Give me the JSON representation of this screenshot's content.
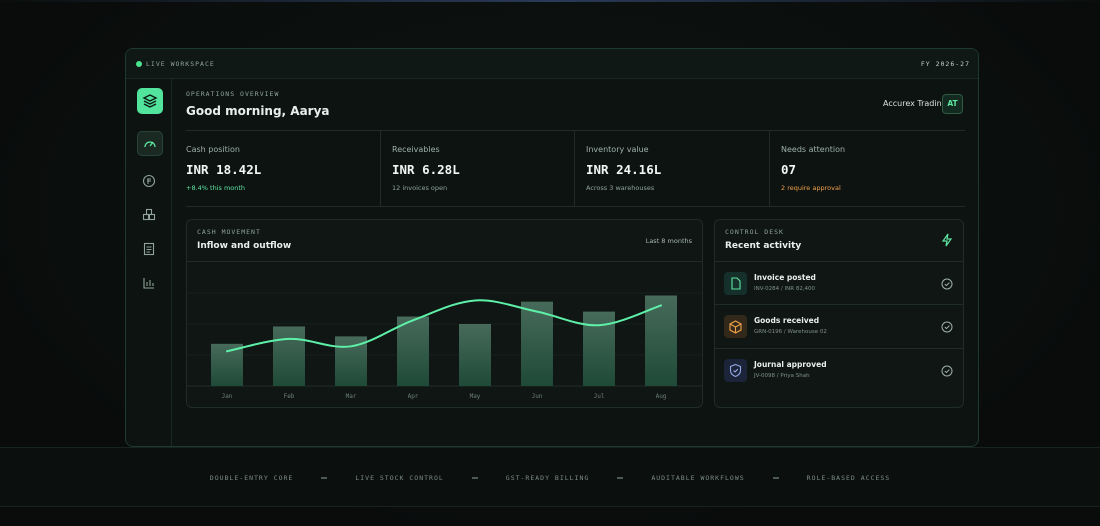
{
  "workspace": {
    "status": "LIVE WORKSPACE",
    "fiscal_year": "FY 2026-27"
  },
  "header": {
    "eyebrow": "OPERATIONS OVERVIEW",
    "greeting": "Good morning, Aarya",
    "company": "Accurex Trading",
    "avatar": "AT"
  },
  "kpis": [
    {
      "label": "Cash position",
      "value": "INR 18.42L",
      "note": "+8.4% this month"
    },
    {
      "label": "Receivables",
      "value": "INR 6.28L",
      "note": "12 invoices open"
    },
    {
      "label": "Inventory value",
      "value": "INR 24.16L",
      "note": "Across 3 warehouses"
    },
    {
      "label": "Needs attention",
      "value": "07",
      "note": "2 require approval"
    }
  ],
  "chart_data": {
    "type": "bar",
    "eyebrow": "CASH MOVEMENT",
    "title": "Inflow and outflow",
    "period": "Last 8 months",
    "categories": [
      "Jan",
      "Feb",
      "Mar",
      "Apr",
      "May",
      "Jun",
      "Jul",
      "Aug"
    ],
    "ylim": [
      0,
      100
    ],
    "series": [
      {
        "type": "bar",
        "color": "#1f4a37",
        "values": [
          34,
          48,
          40,
          56,
          50,
          68,
          60,
          73
        ]
      },
      {
        "type": "line",
        "color": "#5ef0a8",
        "values": [
          28,
          38,
          32,
          53,
          69,
          60,
          49,
          65
        ]
      }
    ]
  },
  "activity": {
    "eyebrow": "CONTROL DESK",
    "title": "Recent activity",
    "items": [
      {
        "title": "Invoice posted",
        "detail": "INV-0284 / INR 82,400"
      },
      {
        "title": "Goods received",
        "detail": "GRN-0196 / Warehouse 02"
      },
      {
        "title": "Journal approved",
        "detail": "JV-0098 / Priya Shah"
      }
    ]
  },
  "features": [
    "DOUBLE-ENTRY CORE",
    "LIVE STOCK CONTROL",
    "GST-READY BILLING",
    "AUDITABLE WORKFLOWS",
    "ROLE-BASED ACCESS"
  ]
}
